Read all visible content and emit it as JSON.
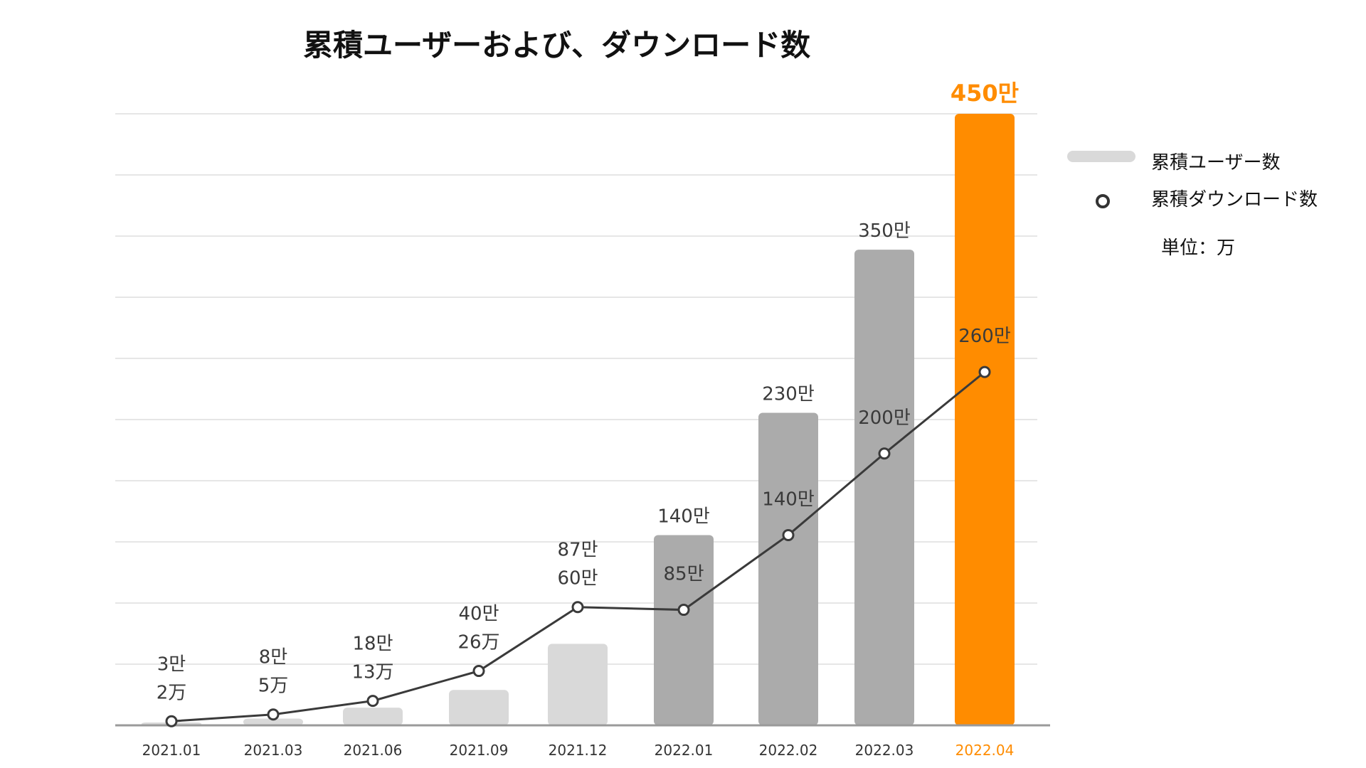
{
  "title": "累積ユーザーおよび、ダウンロード数",
  "legend": {
    "users_label": "累積ユーザー数",
    "downloads_label": "累積ダウンロード数",
    "unit_label": "単位：万"
  },
  "colors": {
    "bar_light": "#d9d9d9",
    "bar_dark": "#ababab",
    "bar_highlight": "#ff8c00",
    "line": "#3a3a3a",
    "highlight_text": "#ff8c00",
    "gridline": "#e6e6e6",
    "axis": "#9a9a9a"
  },
  "chart_data": {
    "type": "bar",
    "categories": [
      "2021.01",
      "2021.03",
      "2021.06",
      "2021.09",
      "2021.12",
      "2022.01",
      "2022.02",
      "2022.03",
      "2022.04"
    ],
    "series": [
      {
        "name": "累積ユーザー数",
        "type": "bar",
        "values": [
          2,
          5,
          13,
          26,
          60,
          140,
          230,
          350,
          450
        ],
        "labels": [
          "2万",
          "5万",
          "13万",
          "26万",
          "60만",
          "140만",
          "230만",
          "350만",
          "450만"
        ],
        "bar_color_groups": [
          "light",
          "light",
          "light",
          "light",
          "light",
          "dark",
          "dark",
          "dark",
          "highlight"
        ]
      },
      {
        "name": "累積ダウンロード数",
        "type": "line",
        "values": [
          3,
          8,
          18,
          40,
          87,
          85,
          140,
          200,
          260
        ],
        "labels": [
          "3만",
          "8만",
          "18만",
          "40만",
          "87만",
          "85만",
          "140만",
          "200만",
          "260만"
        ]
      }
    ],
    "ylim": [
      0,
      450
    ],
    "grid": true,
    "legend_position": "right",
    "highlight_category": "2022.04"
  }
}
